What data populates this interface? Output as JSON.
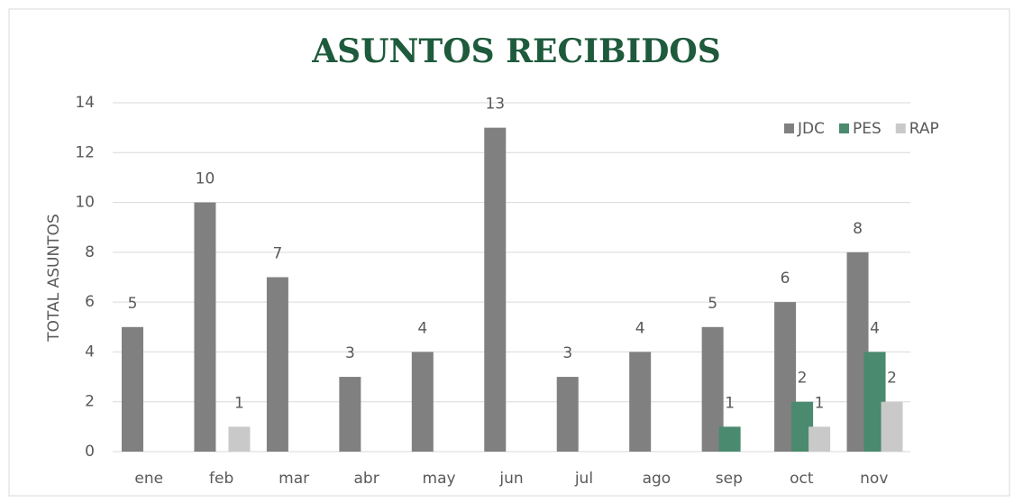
{
  "chart_data": {
    "type": "bar",
    "title": "ASUNTOS RECIBIDOS",
    "y_label": "TOTAL ASUNTOS",
    "categories": [
      "ene",
      "feb",
      "mar",
      "abr",
      "may",
      "jun",
      "jul",
      "ago",
      "sep",
      "oct",
      "nov"
    ],
    "series": [
      {
        "name": "JDC",
        "color": "#808080",
        "values": [
          5,
          10,
          7,
          3,
          4,
          13,
          3,
          4,
          5,
          6,
          8
        ]
      },
      {
        "name": "PES",
        "color": "#4a8a6e",
        "values": [
          0,
          0,
          0,
          0,
          0,
          0,
          0,
          0,
          1,
          2,
          4
        ]
      },
      {
        "name": "RAP",
        "color": "#c9c9c9",
        "values": [
          0,
          1,
          0,
          0,
          0,
          0,
          0,
          0,
          0,
          1,
          2
        ]
      }
    ],
    "ylim": [
      0,
      14
    ],
    "yticks": [
      0,
      2,
      4,
      6,
      8,
      10,
      12,
      14
    ],
    "grid": true,
    "legend": "top-right"
  }
}
